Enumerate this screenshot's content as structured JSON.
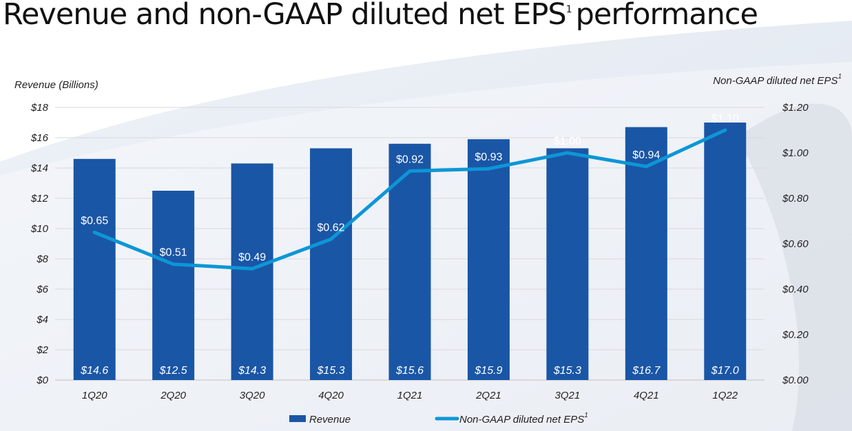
{
  "title": {
    "text": "Revenue and non-GAAP diluted net EPS",
    "superscript": "1",
    "suffix": "performance"
  },
  "colors": {
    "bar": "#1a56a6",
    "line": "#0d96d6",
    "grid": "#d9d9d9"
  },
  "chart_data": {
    "type": "bar",
    "categories": [
      "1Q20",
      "2Q20",
      "3Q20",
      "4Q20",
      "1Q21",
      "2Q21",
      "3Q21",
      "4Q21",
      "1Q22"
    ],
    "series": [
      {
        "name": "Revenue",
        "type": "bar",
        "axis": "left",
        "values": [
          14.6,
          12.5,
          14.3,
          15.3,
          15.6,
          15.9,
          15.3,
          16.7,
          17.0
        ],
        "labels": [
          "$14.6",
          "$12.5",
          "$14.3",
          "$15.3",
          "$15.6",
          "$15.9",
          "$15.3",
          "$16.7",
          "$17.0"
        ]
      },
      {
        "name": "Non-GAAP diluted net EPS",
        "type": "line",
        "axis": "right",
        "values": [
          0.65,
          0.51,
          0.49,
          0.62,
          0.92,
          0.93,
          1.0,
          0.94,
          1.1
        ],
        "labels": [
          "$0.65",
          "$0.51",
          "$0.49",
          "$0.62",
          "$0.92",
          "$0.93",
          "$1.00",
          "$0.94",
          "$1.10"
        ]
      }
    ],
    "y_left": {
      "label": "Revenue (Billions)",
      "ylim": [
        0,
        18
      ],
      "ticks": [
        "$0",
        "$2",
        "$4",
        "$6",
        "$8",
        "$10",
        "$12",
        "$14",
        "$16",
        "$18"
      ]
    },
    "y_right": {
      "label": "Non-GAAP diluted net EPS",
      "label_superscript": "1",
      "ylim": [
        0,
        1.2
      ],
      "ticks": [
        "$0.00",
        "$0.20",
        "$0.40",
        "$0.60",
        "$0.80",
        "$1.00",
        "$1.20"
      ]
    },
    "grid": true,
    "legend": {
      "placement": "bottom-center",
      "items": [
        "Revenue",
        "Non-GAAP diluted net EPS"
      ],
      "line_superscript": "1"
    }
  }
}
